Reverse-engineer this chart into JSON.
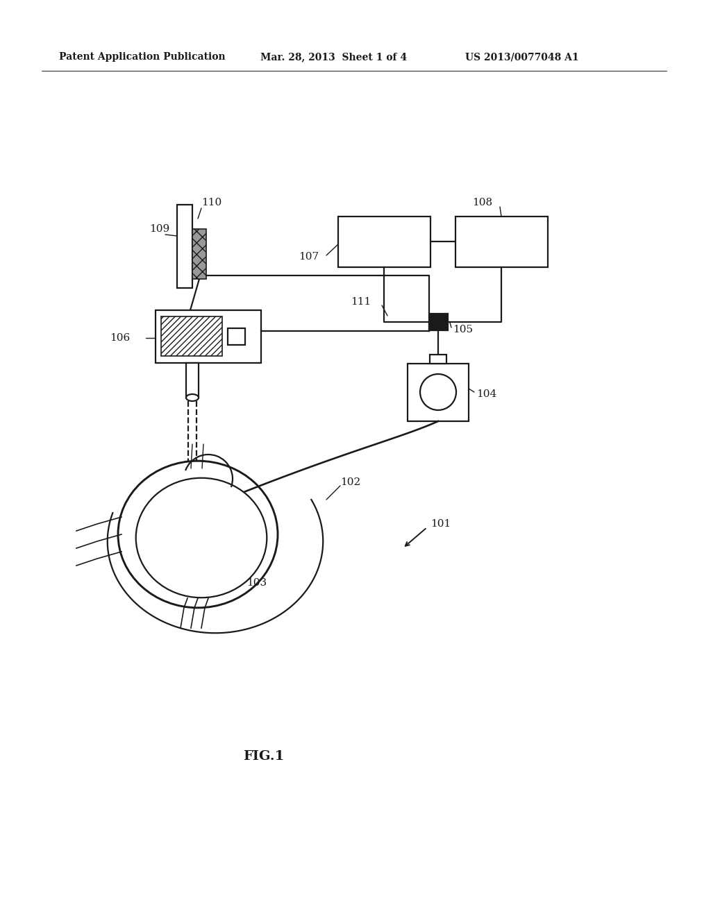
{
  "bg_color": "#ffffff",
  "header_left": "Patent Application Publication",
  "header_mid": "Mar. 28, 2013  Sheet 1 of 4",
  "header_right": "US 2013/0077048 A1",
  "fig_label": "FIG.1",
  "line_color": "#1a1a1a",
  "lw": 1.6
}
